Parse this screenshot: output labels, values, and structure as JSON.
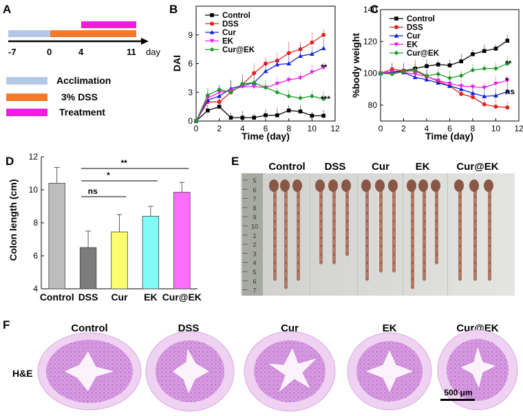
{
  "panel_letters": [
    "A",
    "B",
    "C",
    "D",
    "E",
    "F"
  ],
  "timeline": {
    "ticks": [
      "-7",
      "0",
      "4",
      "11"
    ],
    "unit": "day",
    "legend": [
      {
        "label": "Acclimation",
        "color": "#b4c7e7"
      },
      {
        "label": "3% DSS",
        "color": "#f4792a"
      },
      {
        "label": "Treatment",
        "color": "#ec1ee6"
      }
    ]
  },
  "chart_data": [
    {
      "type": "line",
      "panel": "B",
      "xlabel": "Time (day)",
      "ylabel": "DAI",
      "xlim": [
        0,
        12
      ],
      "ylim": [
        0,
        12
      ],
      "x_ticks": [
        "0",
        "2",
        "4",
        "6",
        "8",
        "10",
        "12"
      ],
      "y_ticks": [
        "0",
        "3",
        "6",
        "9"
      ],
      "x": [
        0,
        1,
        2,
        3,
        4,
        5,
        6,
        7,
        8,
        9,
        10,
        11
      ],
      "series": [
        {
          "name": "Control",
          "color": "#000000",
          "marker": "square",
          "values": [
            0,
            1.1,
            1.5,
            0.35,
            0.35,
            0.35,
            0.6,
            0.6,
            1.1,
            1.0,
            0.55,
            0.55
          ]
        },
        {
          "name": "DSS",
          "color": "#e3211d",
          "marker": "circle",
          "values": [
            0,
            2.0,
            2.0,
            3.0,
            3.8,
            5.0,
            6.0,
            6.3,
            7.1,
            7.5,
            8.2,
            9.0
          ]
        },
        {
          "name": "Cur",
          "color": "#1021d0",
          "marker": "triangle",
          "values": [
            0,
            2.2,
            2.6,
            3.4,
            3.7,
            4.0,
            5.2,
            5.9,
            6.0,
            6.8,
            7.0,
            7.6
          ]
        },
        {
          "name": "EK",
          "color": "#ec1ee6",
          "marker": "tri-down",
          "values": [
            0,
            2.4,
            3.0,
            3.2,
            3.6,
            3.6,
            3.5,
            3.9,
            4.3,
            4.5,
            5.1,
            5.6
          ]
        },
        {
          "name": "Cur@EK",
          "color": "#1d9b2a",
          "marker": "diamond",
          "values": [
            0,
            2.7,
            3.3,
            3.0,
            3.9,
            4.0,
            3.5,
            3.0,
            2.6,
            2.4,
            2.6,
            2.3
          ]
        }
      ],
      "annotations": [
        {
          "label": "**",
          "series": "EK"
        },
        {
          "label": "***",
          "series": "Cur@EK"
        }
      ]
    },
    {
      "type": "line",
      "panel": "C",
      "xlabel": "Time (day)",
      "ylabel": "%body weight",
      "xlim": [
        0,
        12
      ],
      "ylim": [
        70,
        140
      ],
      "x_ticks": [
        "0",
        "2",
        "4",
        "6",
        "8",
        "10",
        "12"
      ],
      "y_ticks": [
        "80",
        "100",
        "120",
        "140"
      ],
      "x": [
        0,
        1,
        2,
        3,
        4,
        5,
        6,
        7,
        8,
        9,
        10,
        11
      ],
      "series": [
        {
          "name": "Control",
          "color": "#000000",
          "marker": "square",
          "values": [
            100,
            101,
            101.5,
            103,
            104.5,
            105.5,
            105,
            107.5,
            112,
            114,
            115.5,
            120.5
          ]
        },
        {
          "name": "DSS",
          "color": "#e3211d",
          "marker": "circle",
          "values": [
            100,
            102.5,
            101.5,
            101.5,
            98,
            95,
            92,
            87,
            85,
            80.5,
            79,
            78.5
          ]
        },
        {
          "name": "Cur",
          "color": "#1021d0",
          "marker": "triangle",
          "values": [
            100,
            100.5,
            100.5,
            97.5,
            96,
            94,
            92,
            90,
            87.5,
            85.5,
            86,
            88.5
          ]
        },
        {
          "name": "EK",
          "color": "#ec1ee6",
          "marker": "tri-down",
          "values": [
            100,
            101,
            100.5,
            99.5,
            98,
            95.5,
            93.5,
            92,
            91.5,
            91,
            93.5,
            95.5
          ]
        },
        {
          "name": "Cur@EK",
          "color": "#1d9b2a",
          "marker": "diamond",
          "values": [
            100,
            99.5,
            101,
            102,
            98.5,
            99.5,
            97,
            98.5,
            102,
            103,
            103,
            106
          ]
        }
      ],
      "annotations": [
        {
          "label": "**",
          "series": "Cur@EK"
        },
        {
          "label": "*",
          "series": "EK"
        },
        {
          "label": "ns",
          "series": "Cur"
        }
      ]
    },
    {
      "type": "bar",
      "panel": "D",
      "ylabel": "Colon length (cm)",
      "ylim": [
        4,
        12
      ],
      "y_ticks": [
        "4",
        "6",
        "8",
        "10",
        "12"
      ],
      "categories": [
        "Control",
        "DSS",
        "Cur",
        "EK",
        "Cur@EK"
      ],
      "values": [
        10.4,
        6.5,
        7.45,
        8.4,
        9.85
      ],
      "errors": [
        0.95,
        1.0,
        1.05,
        0.6,
        0.6
      ],
      "colors": [
        "#bdbdbd",
        "#7c7c7c",
        "#fbff6d",
        "#80fbf7",
        "#fd6dfc"
      ],
      "significance": [
        {
          "label": "ns",
          "from": "DSS",
          "to": "Cur"
        },
        {
          "label": "*",
          "from": "DSS",
          "to": "EK"
        },
        {
          "label": "**",
          "from": "DSS",
          "to": "Cur@EK"
        }
      ]
    }
  ],
  "photo": {
    "labels": [
      "Control",
      "DSS",
      "Cur",
      "EK",
      "Cur@EK"
    ],
    "ruler_numbers": [
      "5",
      "6",
      "7",
      "8",
      "9",
      "10",
      "1",
      "2",
      "3",
      "4",
      "5",
      "6",
      "7"
    ]
  },
  "histology": {
    "labels": [
      "Control",
      "DSS",
      "Cur",
      "EK",
      "Cur@EK"
    ],
    "stain": "H&E",
    "scale_bar": "500 μm"
  }
}
